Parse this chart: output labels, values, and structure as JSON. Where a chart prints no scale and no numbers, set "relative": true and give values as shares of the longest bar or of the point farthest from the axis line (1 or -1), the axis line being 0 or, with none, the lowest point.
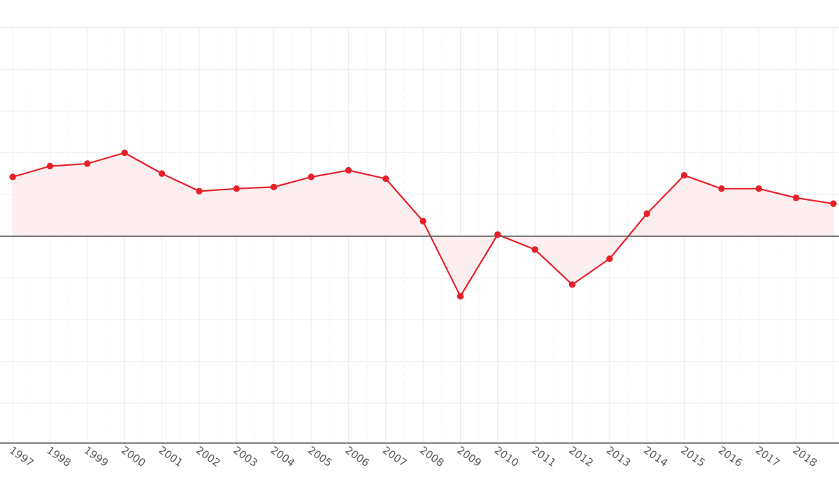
{
  "chart_data": {
    "type": "area",
    "relative": true,
    "categories": [
      "1997",
      "1998",
      "1999",
      "2000",
      "2001",
      "2002",
      "2003",
      "2004",
      "2005",
      "2006",
      "2007",
      "2008",
      "2009",
      "2010",
      "2011",
      "2012",
      "2013",
      "2014",
      "2015",
      "2016",
      "2017",
      "2018",
      null
    ],
    "series": [
      {
        "color": "#e8202a",
        "values": [
          0.71,
          0.84,
          0.87,
          1,
          0.75,
          0.54,
          0.57,
          0.59,
          0.71,
          0.79,
          0.69,
          0.18,
          -0.72,
          0.02,
          -0.16,
          -0.58,
          -0.27,
          0.27,
          0.73,
          0.57,
          0.57,
          0.46,
          0.39
        ]
      }
    ],
    "marker": "circle",
    "grid": true
  }
}
